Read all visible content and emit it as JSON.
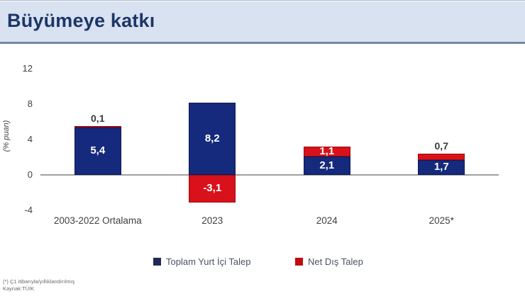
{
  "header": {
    "title": "Büyümeye katkı"
  },
  "chart_data": {
    "type": "bar",
    "stacked": true,
    "title": "Büyümeye katkı",
    "categories": [
      "2003-2022 Ortalama",
      "2023",
      "2024",
      "2025*"
    ],
    "series": [
      {
        "name": "Toplam Yurt İçi Talep",
        "color": "#15297d",
        "border_color": "#0c1a52",
        "legend_color": "#1f2b52",
        "values": [
          5.4,
          8.2,
          2.1,
          1.7
        ],
        "labels": [
          "5,4",
          "8,2",
          "2,1",
          "1,7"
        ]
      },
      {
        "name": "Net Dış Talep",
        "color": "#d8111a",
        "border_color": "#9c0b10",
        "legend_color": "#c00c12",
        "values": [
          0.1,
          -3.1,
          1.1,
          0.7
        ],
        "labels": [
          "0,1",
          "-3,1",
          "1,1",
          "0,7"
        ]
      }
    ],
    "xlabel": "",
    "ylabel": "(% puan)",
    "yticks": [
      12,
      8,
      4,
      0,
      -4
    ],
    "ylim": [
      -4,
      12
    ],
    "grid": false,
    "legend_position": "bottom"
  },
  "footnote": {
    "line1": "(*) Ç1 itibarıyla/yıllıklandırılmış",
    "line2": "Kaynak:TÜİK"
  },
  "colors": {
    "header_background": "#d9e2f1",
    "header_border": "#76879e",
    "title_text": "#1d3669",
    "axis_line": "#a0a0a0",
    "tick_text": "#3f3f3f"
  }
}
